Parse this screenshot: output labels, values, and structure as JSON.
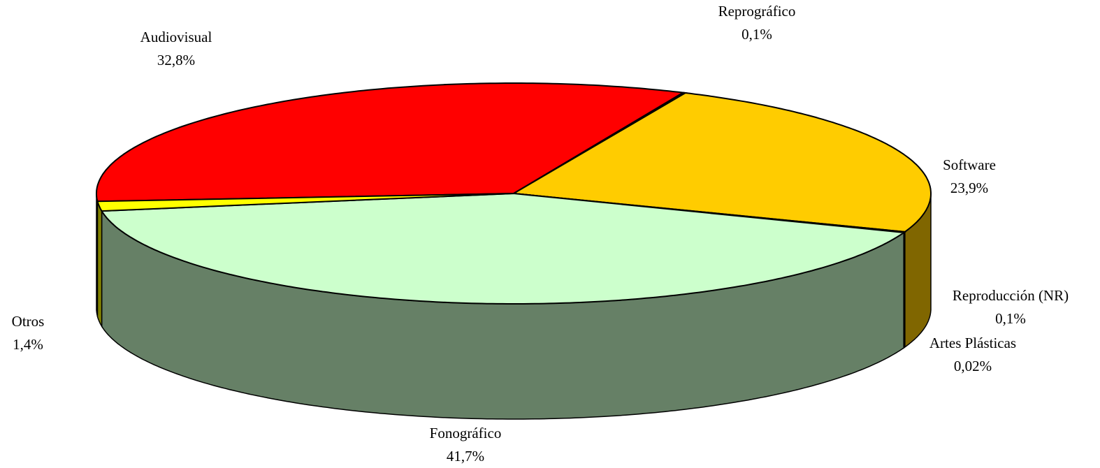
{
  "chart_data": {
    "type": "pie3d",
    "categories": [
      "Audiovisual",
      "Reprográfico",
      "Software",
      "Reproducción (NR)",
      "Artes Plásticas",
      "Fonográfico",
      "Otros"
    ],
    "values": [
      32.8,
      0.1,
      23.9,
      0.1,
      0.02,
      41.7,
      1.4
    ],
    "value_labels": [
      "32,8%",
      "0,1%",
      "23,9%",
      "0,1%",
      "0,02%",
      "41,7%",
      "1,4%"
    ],
    "colors": [
      "#ff0000",
      "#000000",
      "#ffcc00",
      "#000080",
      "#000080",
      "#ccffcc",
      "#ffff00"
    ]
  }
}
